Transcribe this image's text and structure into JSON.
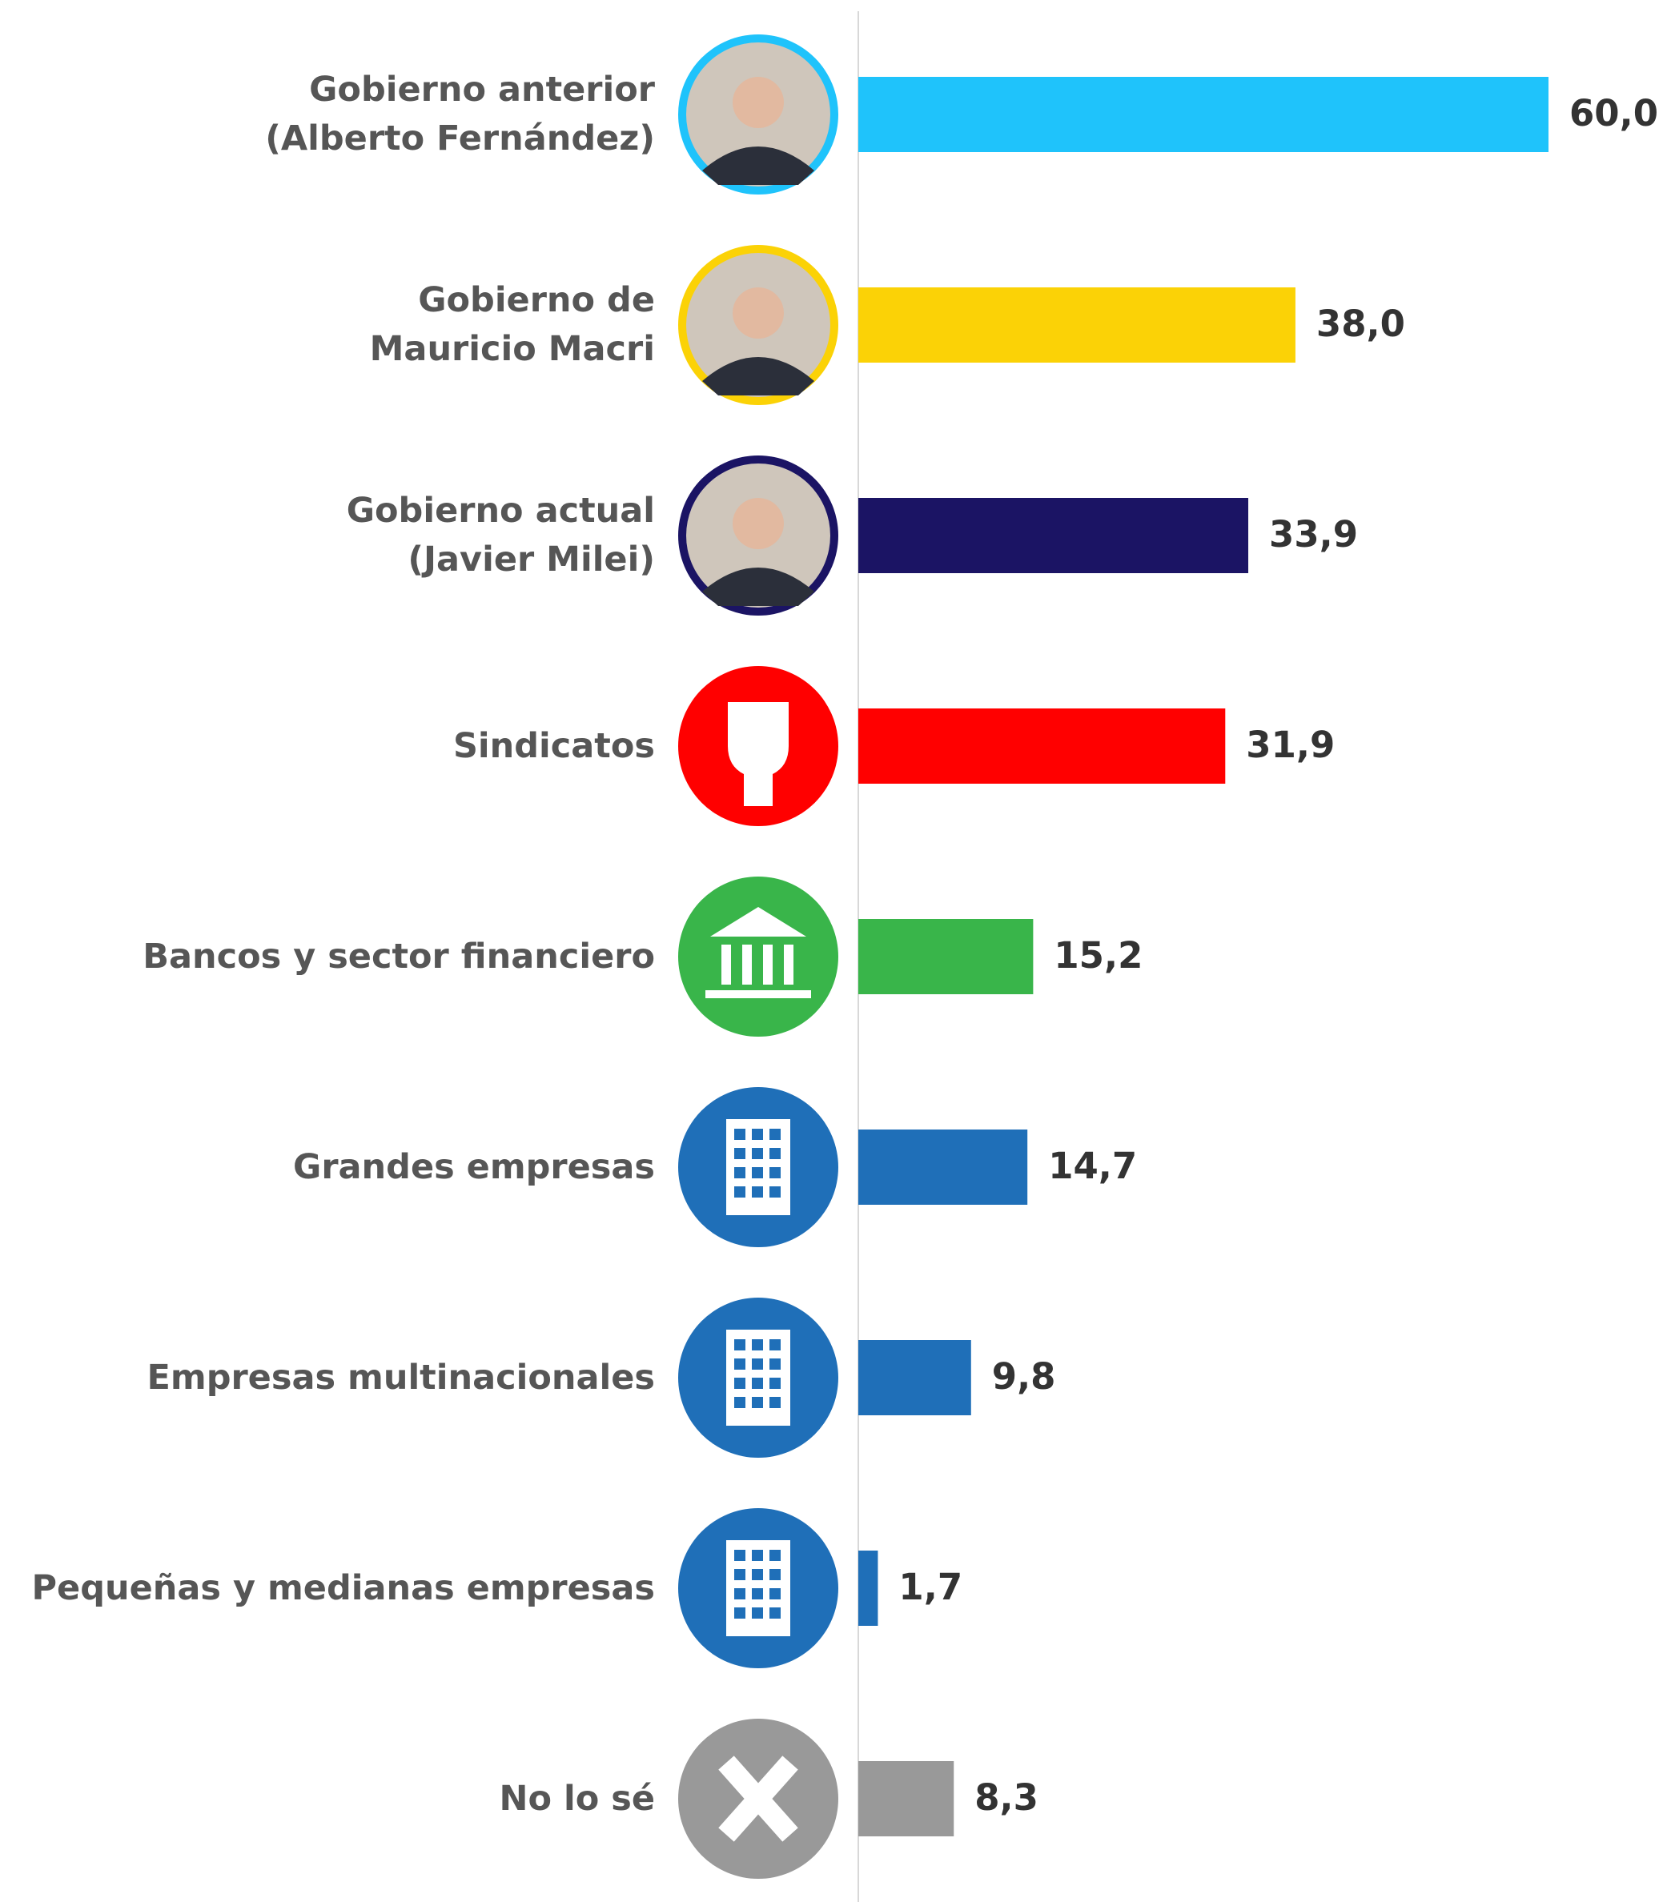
{
  "chart_data": {
    "type": "barh",
    "categories": [
      "Gobierno anterior\n(Alberto Fernández)",
      "Gobierno de\nMauricio Macri",
      "Gobierno actual\n(Javier Milei)",
      "Sindicatos",
      "Bancos y sector financiero",
      "Grandes empresas",
      "Empresas multinacionales",
      "Pequeñas y medianas empresas",
      "No lo sé"
    ],
    "values": [
      60.0,
      38.0,
      33.9,
      31.9,
      15.2,
      14.7,
      9.8,
      1.7,
      8.3
    ],
    "value_labels": [
      "60,0",
      "38,0",
      "33,9",
      "31,9",
      "15,2",
      "14,7",
      "9,8",
      "1,7",
      "8,3"
    ],
    "colors": [
      "#1fc3fb",
      "#fbd206",
      "#1b1464",
      "#ff0000",
      "#39b54a",
      "#1f6fb8",
      "#1f6fb8",
      "#1f6fb8",
      "#999999"
    ]
  }
}
